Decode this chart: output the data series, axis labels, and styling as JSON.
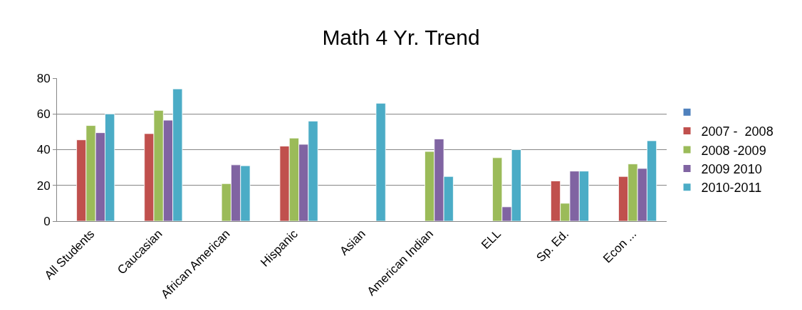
{
  "chart_data": {
    "type": "bar",
    "title": "Math 4 Yr. Trend",
    "categories": [
      "All Students",
      "Caucasian",
      "African American",
      "Hispanic",
      "Asian",
      "American Indian",
      "ELL",
      "Sp. Ed.",
      "Econ ..."
    ],
    "series": [
      {
        "color": "#4f81bd",
        "values": [
          null,
          null,
          null,
          null,
          null,
          null,
          null,
          null,
          null
        ]
      },
      {
        "name": "2007 -  2008",
        "color": "#c0504d",
        "values": [
          45.5,
          49,
          null,
          42,
          null,
          null,
          null,
          22.5,
          25
        ]
      },
      {
        "name": "2008 -2009",
        "color": "#9bbb59",
        "values": [
          53.5,
          62,
          21,
          46.5,
          null,
          39,
          35.5,
          10,
          32
        ]
      },
      {
        "name": "2009 2010",
        "color": "#8064a2",
        "values": [
          49.5,
          56.5,
          31.5,
          43,
          null,
          46,
          8,
          28,
          29.5
        ]
      },
      {
        "name": "2010-2011",
        "color": "#4bacc6",
        "values": [
          60,
          74,
          31,
          56,
          66,
          25,
          40,
          28,
          45
        ]
      }
    ],
    "ylim": [
      0,
      80
    ],
    "yticks": [
      0,
      20,
      40,
      60,
      80
    ],
    "grid": "y",
    "legend": "right"
  }
}
